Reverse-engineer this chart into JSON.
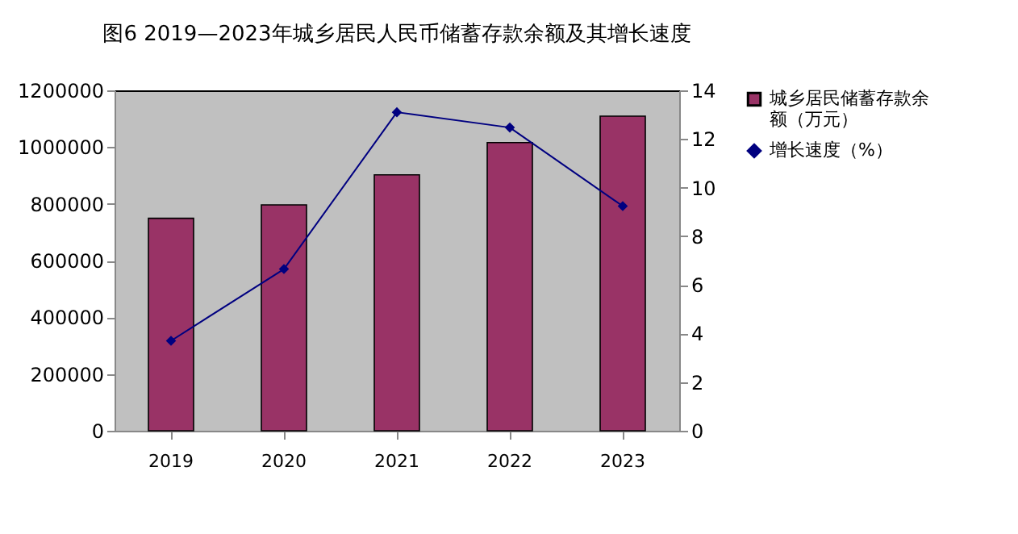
{
  "chart_data": {
    "type": "bar",
    "title": "图6 2019—2023年城乡居民人民币储蓄存款余额及其增长速度",
    "categories": [
      "2019",
      "2020",
      "2021",
      "2022",
      "2023"
    ],
    "series": [
      {
        "name": "城乡居民储蓄存款余额（万元）",
        "color": "#993366",
        "values": [
          749000,
          796000,
          902000,
          1016000,
          1109000
        ]
      },
      {
        "name": "增长速度（%）",
        "type": "line",
        "axis": "y2",
        "color": "#000080",
        "marker": "diamond",
        "values": [
          3.7,
          6.65,
          13.1,
          12.47,
          9.24
        ]
      }
    ],
    "ylim": [
      0,
      1200000
    ],
    "yticks": [
      0,
      200000,
      400000,
      600000,
      800000,
      1000000,
      1200000
    ],
    "y2lim": [
      0,
      14
    ],
    "y2ticks": [
      0,
      2,
      4,
      6,
      8,
      10,
      12,
      14
    ],
    "grid": false,
    "legend": "right"
  }
}
